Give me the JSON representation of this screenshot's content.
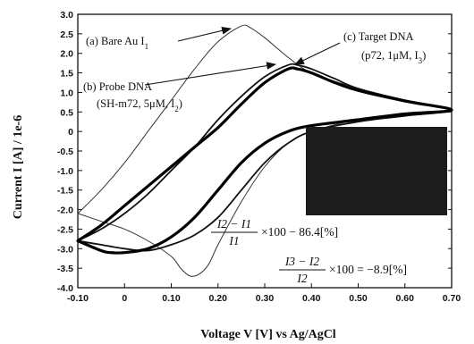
{
  "chart_data": {
    "type": "line",
    "xlabel": "Voltage V [V] vs Ag/AgCl",
    "ylabel": "Current I [A] / 1e-6",
    "xlim": [
      -0.1,
      0.7
    ],
    "ylim": [
      -4.0,
      3.0
    ],
    "x_ticks": [
      "-0.10",
      "0",
      "0.10",
      "0.20",
      "0.30",
      "0.40",
      "0.50",
      "0.60",
      "0.70"
    ],
    "x_tick_values": [
      -0.1,
      0.0,
      0.1,
      0.2,
      0.3,
      0.4,
      0.5,
      0.6,
      0.7
    ],
    "y_ticks": [
      "-4.0",
      "-3.5",
      "-3.0",
      "-2.5",
      "-2.0",
      "-1.5",
      "-1.0",
      "-0.5",
      "0",
      "0.5",
      "1.0",
      "1.5",
      "2.0",
      "2.5",
      "3.0"
    ],
    "y_tick_values": [
      -4.0,
      -3.5,
      -3.0,
      -2.5,
      -2.0,
      -1.5,
      -1.0,
      -0.5,
      0.0,
      0.5,
      1.0,
      1.5,
      2.0,
      2.5,
      3.0
    ],
    "grid": false,
    "series": [
      {
        "name": "(a) Bare Au I1",
        "style": "thin",
        "color": "#333333",
        "x": [
          -0.1,
          -0.05,
          0.0,
          0.05,
          0.1,
          0.15,
          0.2,
          0.25,
          0.27,
          0.3,
          0.35,
          0.4,
          0.5,
          0.6,
          0.7,
          0.6,
          0.5,
          0.4,
          0.35,
          0.3,
          0.25,
          0.2,
          0.18,
          0.16,
          0.14,
          0.12,
          0.1,
          0.05,
          0.0,
          -0.05,
          -0.1
        ],
        "y": [
          -2.1,
          -1.5,
          -0.8,
          0.0,
          0.8,
          1.6,
          2.3,
          2.7,
          2.65,
          2.4,
          1.9,
          1.5,
          1.1,
          0.8,
          0.55,
          0.4,
          0.3,
          0.0,
          -0.3,
          -0.9,
          -1.8,
          -2.9,
          -3.4,
          -3.65,
          -3.7,
          -3.5,
          -3.2,
          -2.8,
          -2.5,
          -2.3,
          -2.1
        ]
      },
      {
        "name": "(b) Probe DNA (SH-m72, 5μM, I2)",
        "style": "medium",
        "color": "#111111",
        "x": [
          -0.1,
          -0.05,
          0.0,
          0.05,
          0.1,
          0.15,
          0.2,
          0.25,
          0.3,
          0.35,
          0.37,
          0.4,
          0.45,
          0.5,
          0.6,
          0.7,
          0.6,
          0.5,
          0.4,
          0.35,
          0.3,
          0.25,
          0.2,
          0.15,
          0.1,
          0.05,
          0.0,
          -0.05,
          -0.1
        ],
        "y": [
          -2.8,
          -2.5,
          -2.1,
          -1.6,
          -1.0,
          -0.4,
          0.3,
          0.9,
          1.4,
          1.7,
          1.7,
          1.6,
          1.35,
          1.1,
          0.8,
          0.55,
          0.4,
          0.25,
          0.0,
          -0.3,
          -0.8,
          -1.5,
          -2.2,
          -2.65,
          -2.9,
          -3.05,
          -3.0,
          -2.9,
          -2.8
        ]
      },
      {
        "name": "(c) Target DNA (p72, 1μM, I3)",
        "style": "thick",
        "color": "#000000",
        "x": [
          -0.1,
          -0.05,
          0.0,
          0.05,
          0.1,
          0.15,
          0.2,
          0.25,
          0.3,
          0.35,
          0.37,
          0.4,
          0.45,
          0.5,
          0.6,
          0.7,
          0.6,
          0.5,
          0.4,
          0.35,
          0.3,
          0.25,
          0.2,
          0.15,
          0.1,
          0.05,
          0.0,
          -0.03,
          -0.05,
          -0.1
        ],
        "y": [
          -2.8,
          -2.4,
          -1.9,
          -1.4,
          -0.9,
          -0.4,
          0.1,
          0.7,
          1.25,
          1.6,
          1.6,
          1.5,
          1.25,
          1.05,
          0.78,
          0.55,
          0.45,
          0.3,
          0.15,
          0.0,
          -0.3,
          -0.8,
          -1.5,
          -2.2,
          -2.7,
          -3.0,
          -3.1,
          -3.1,
          -3.05,
          -2.8
        ]
      }
    ],
    "annotations": [
      {
        "id": "a",
        "text": "(a) Bare Au I",
        "sub": "1"
      },
      {
        "id": "b1",
        "text": "(b) Probe DNA"
      },
      {
        "id": "b2",
        "text": "(SH-m72, 5μM, I",
        "sub": "2",
        "tail": ")"
      },
      {
        "id": "c1",
        "text": "(c) Target DNA"
      },
      {
        "id": "c2",
        "text": "(p72, 1μM, I",
        "sub": "3",
        "tail": ")"
      }
    ],
    "formulas": [
      {
        "num": "I2 − I1",
        "den": "I1",
        "rhs": "×100 − 86.4[%]"
      },
      {
        "num": "I3 − I2",
        "den": "I2",
        "rhs": "×100 = −8.9[%]"
      }
    ],
    "inset_color": "#1c1c1c"
  }
}
